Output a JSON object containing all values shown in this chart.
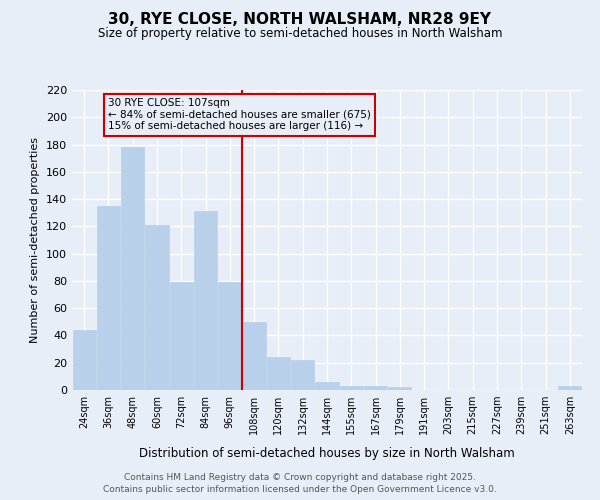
{
  "title": "30, RYE CLOSE, NORTH WALSHAM, NR28 9EY",
  "subtitle": "Size of property relative to semi-detached houses in North Walsham",
  "xlabel": "Distribution of semi-detached houses by size in North Walsham",
  "ylabel": "Number of semi-detached properties",
  "bar_labels": [
    "24sqm",
    "36sqm",
    "48sqm",
    "60sqm",
    "72sqm",
    "84sqm",
    "96sqm",
    "108sqm",
    "120sqm",
    "132sqm",
    "144sqm",
    "155sqm",
    "167sqm",
    "179sqm",
    "191sqm",
    "203sqm",
    "215sqm",
    "227sqm",
    "239sqm",
    "251sqm",
    "263sqm"
  ],
  "bar_values": [
    44,
    135,
    178,
    121,
    79,
    131,
    79,
    50,
    24,
    22,
    6,
    3,
    3,
    2,
    0,
    0,
    0,
    0,
    0,
    0,
    3
  ],
  "bar_color": "#b8d0ea",
  "bar_edgecolor": "#b8d0ea",
  "background_color": "#e8eef7",
  "grid_color": "#ffffff",
  "vline_color": "#cc0000",
  "annotation_title": "30 RYE CLOSE: 107sqm",
  "annotation_line1": "← 84% of semi-detached houses are smaller (675)",
  "annotation_line2": "15% of semi-detached houses are larger (116) →",
  "ylim": [
    0,
    220
  ],
  "yticks": [
    0,
    20,
    40,
    60,
    80,
    100,
    120,
    140,
    160,
    180,
    200,
    220
  ],
  "footer1": "Contains HM Land Registry data © Crown copyright and database right 2025.",
  "footer2": "Contains public sector information licensed under the Open Government Licence v3.0."
}
